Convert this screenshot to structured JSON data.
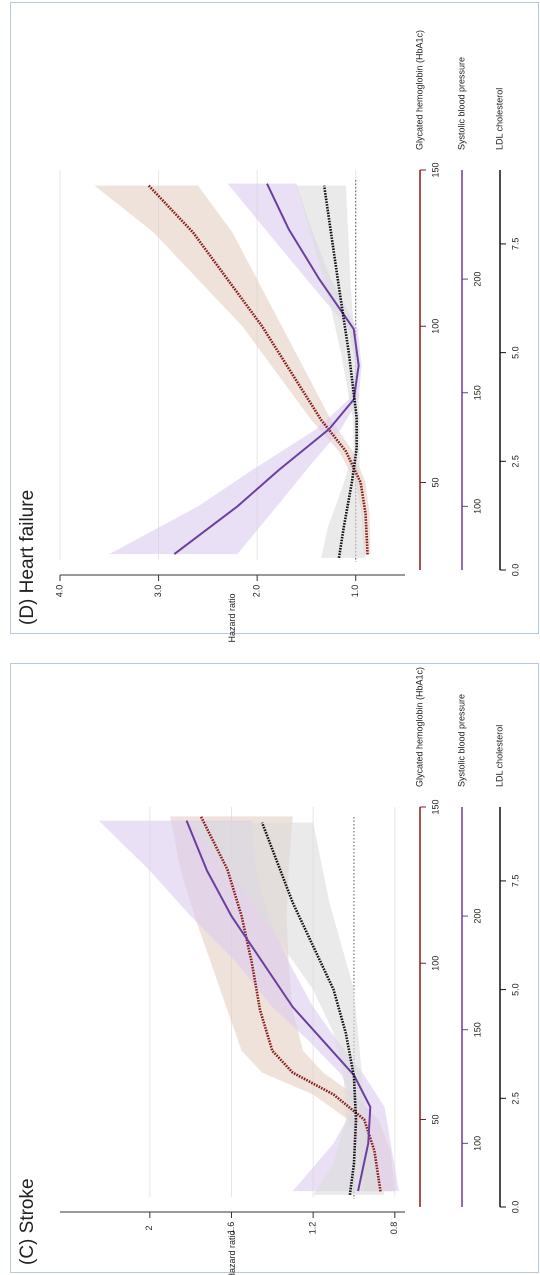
{
  "chart_data": [
    {
      "type": "line",
      "title": "(D) Heart failure",
      "y_label": "Hazard ratio",
      "ylim": [
        0.5,
        4.0
      ],
      "yticks": [
        {
          "value": 1,
          "label": "1.0"
        },
        {
          "value": 2,
          "label": "2.0"
        },
        {
          "value": 3,
          "label": "3.0"
        },
        {
          "value": 4,
          "label": "4.0"
        }
      ],
      "reference_line": 1,
      "grid": true,
      "x_axes": [
        {
          "label": "Glycated hemoglobin (HbA1c)",
          "color": "#8b1a1a",
          "xlim": [
            22,
            150
          ],
          "xticks": [
            50,
            100,
            150
          ]
        },
        {
          "label": "Systolic blood pressure",
          "color": "#6a3fa0",
          "xlim": [
            72,
            248
          ],
          "xticks": [
            100,
            150,
            200
          ]
        },
        {
          "label": "LDL cholesterol",
          "color": "#111111",
          "xlim": [
            0,
            9.2
          ],
          "xticks": [
            {
              "value": 0,
              "label": "0.0"
            },
            2.5,
            {
              "value": 5,
              "label": "5.0"
            },
            7.5
          ]
        }
      ],
      "series": [
        {
          "x_axis": 0,
          "color": "#8b1a1a",
          "band_color": "#e3cfc3",
          "style": "dotted",
          "x": [
            27,
            40,
            50,
            60,
            70,
            85,
            100,
            115,
            130,
            145
          ],
          "values": [
            0.88,
            0.9,
            0.95,
            1.1,
            1.35,
            1.65,
            1.95,
            2.3,
            2.65,
            3.1
          ],
          "lower": [
            0.85,
            0.86,
            0.9,
            1.03,
            1.25,
            1.5,
            1.75,
            2.0,
            2.25,
            2.6
          ],
          "upper": [
            0.92,
            0.94,
            1.0,
            1.17,
            1.45,
            1.8,
            2.15,
            2.6,
            3.05,
            3.65
          ]
        },
        {
          "x_axis": 1,
          "color": "#6a3fa0",
          "band_color": "#dccbee",
          "style": "solid",
          "x": [
            79,
            100,
            116,
            134,
            147,
            162,
            178,
            200,
            222,
            242
          ],
          "values": [
            2.84,
            2.2,
            1.78,
            1.27,
            1.02,
            0.97,
            1.02,
            1.37,
            1.68,
            1.9
          ],
          "lower": [
            2.2,
            1.8,
            1.5,
            1.15,
            0.97,
            0.94,
            0.98,
            1.25,
            1.45,
            1.6
          ],
          "upper": [
            3.5,
            2.6,
            2.05,
            1.4,
            1.07,
            1.0,
            1.07,
            1.5,
            1.92,
            2.3
          ]
        },
        {
          "x_axis": 2,
          "color": "#111111",
          "band_color": "#dcdcdc",
          "style": "dotted",
          "x": [
            0.28,
            1,
            2,
            2.8,
            3.5,
            5,
            6.5,
            8.84
          ],
          "values": [
            1.17,
            1.12,
            1.04,
            0.99,
            0.99,
            1.07,
            1.17,
            1.32
          ],
          "lower": [
            0.9,
            0.92,
            0.96,
            0.96,
            0.96,
            1.0,
            1.05,
            1.1
          ],
          "upper": [
            1.35,
            1.28,
            1.12,
            1.02,
            1.03,
            1.15,
            1.3,
            1.6
          ]
        }
      ]
    },
    {
      "type": "line",
      "title": "(C) Stroke",
      "y_label": "Hazard ratio",
      "ylim": [
        0.75,
        2.44
      ],
      "yticks": [
        0.8,
        1.2,
        1.6,
        2.0
      ],
      "reference_line": 1,
      "grid": true,
      "x_axes": [
        {
          "label": "Glycated hemoglobin (HbA1c)",
          "color": "#8b1a1a",
          "xlim": [
            22,
            150
          ],
          "xticks": [
            50,
            100,
            150
          ]
        },
        {
          "label": "Systolic blood pressure",
          "color": "#6a3fa0",
          "xlim": [
            72,
            248
          ],
          "xticks": [
            100,
            150,
            200
          ]
        },
        {
          "label": "LDL cholesterol",
          "color": "#111111",
          "xlim": [
            0,
            9.2
          ],
          "xticks": [
            {
              "value": 0,
              "label": "0.0"
            },
            2.5,
            {
              "value": 5,
              "label": "5.0"
            },
            7.5
          ]
        }
      ],
      "series": [
        {
          "x_axis": 0,
          "color": "#8b1a1a",
          "band_color": "#e3cfc3",
          "style": "dotted",
          "x": [
            27,
            40,
            50,
            58,
            65,
            72,
            85,
            100,
            115,
            130,
            147
          ],
          "values": [
            0.87,
            0.9,
            0.95,
            1.1,
            1.3,
            1.4,
            1.46,
            1.5,
            1.55,
            1.62,
            1.75
          ],
          "lower": [
            0.8,
            0.82,
            0.88,
            1.0,
            1.15,
            1.25,
            1.3,
            1.32,
            1.33,
            1.32,
            1.3
          ],
          "upper": [
            0.95,
            0.98,
            1.03,
            1.2,
            1.45,
            1.55,
            1.62,
            1.7,
            1.78,
            1.85,
            1.9
          ]
        },
        {
          "x_axis": 1,
          "color": "#6a3fa0",
          "band_color": "#dccbee",
          "style": "solid",
          "x": [
            79,
            100,
            116,
            130,
            145,
            160,
            180,
            200,
            220,
            242
          ],
          "values": [
            0.98,
            0.93,
            0.92,
            1.0,
            1.15,
            1.3,
            1.45,
            1.6,
            1.72,
            1.82
          ],
          "lower": [
            0.78,
            0.82,
            0.85,
            0.95,
            1.08,
            1.2,
            1.32,
            1.42,
            1.48,
            1.5
          ],
          "upper": [
            1.3,
            1.1,
            1.0,
            1.06,
            1.22,
            1.4,
            1.58,
            1.8,
            2.0,
            2.25
          ]
        },
        {
          "x_axis": 2,
          "color": "#111111",
          "band_color": "#dcdcdc",
          "style": "dotted",
          "x": [
            0.28,
            1,
            2,
            3,
            4,
            5,
            6,
            7,
            8.84
          ],
          "values": [
            1.02,
            1.0,
            0.99,
            1.0,
            1.04,
            1.1,
            1.2,
            1.3,
            1.45
          ],
          "lower": [
            0.85,
            0.9,
            0.94,
            0.96,
            0.98,
            1.0,
            1.06,
            1.12,
            1.2
          ],
          "upper": [
            1.2,
            1.1,
            1.04,
            1.05,
            1.1,
            1.2,
            1.35,
            1.5,
            1.8
          ]
        }
      ]
    }
  ]
}
